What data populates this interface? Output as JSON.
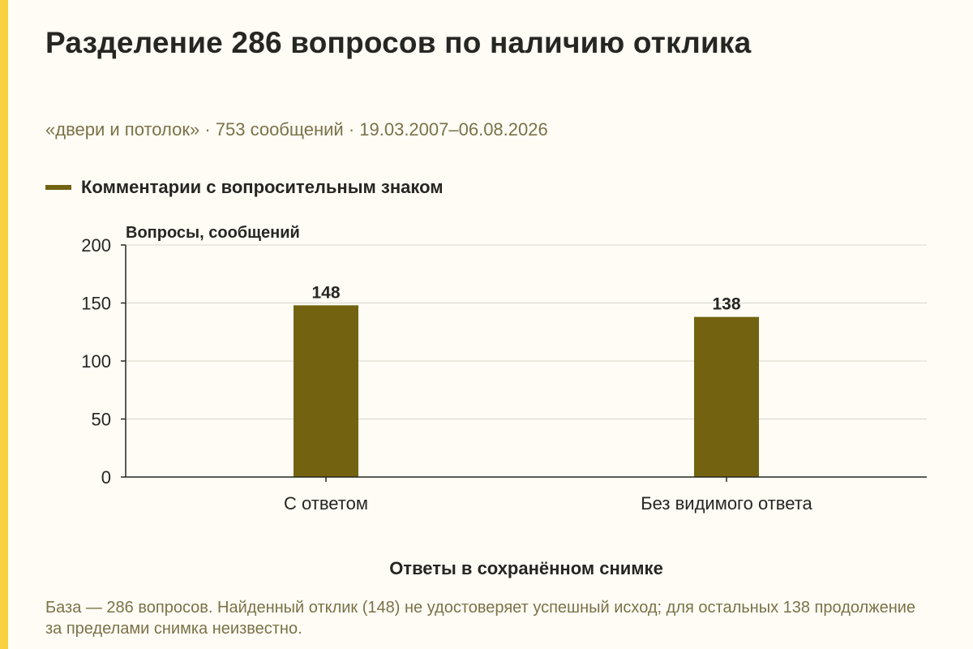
{
  "title": "Разделение 286 вопросов по наличию отклика",
  "subtitle": "«двери и потолок» · 753 сообщений · 19.03.2007–06.08.2026",
  "caption": "База — 286 вопросов. Найденный отклик (148) не удостоверяет успешный исход; для остальных 138 продолжение за пределами снимка неизвестно.",
  "colors": {
    "accent": "#f7d13f",
    "bar": "#736311",
    "text": "#262622",
    "muted": "#7a7248",
    "background": "#fefcf5"
  },
  "chart_data": {
    "type": "bar",
    "categories": [
      "С ответом",
      "Без видимого ответа"
    ],
    "series": [
      {
        "name": "Комментарии с вопросительным знаком",
        "values": [
          148,
          138
        ]
      }
    ],
    "xlabel": "Ответы в сохранённом снимке",
    "ylabel": "Вопросы, сообщений",
    "ylim": [
      0,
      200
    ],
    "yticks": [
      0,
      50,
      100,
      150,
      200
    ],
    "grid": true,
    "legend": "top-left",
    "data_labels": true
  }
}
